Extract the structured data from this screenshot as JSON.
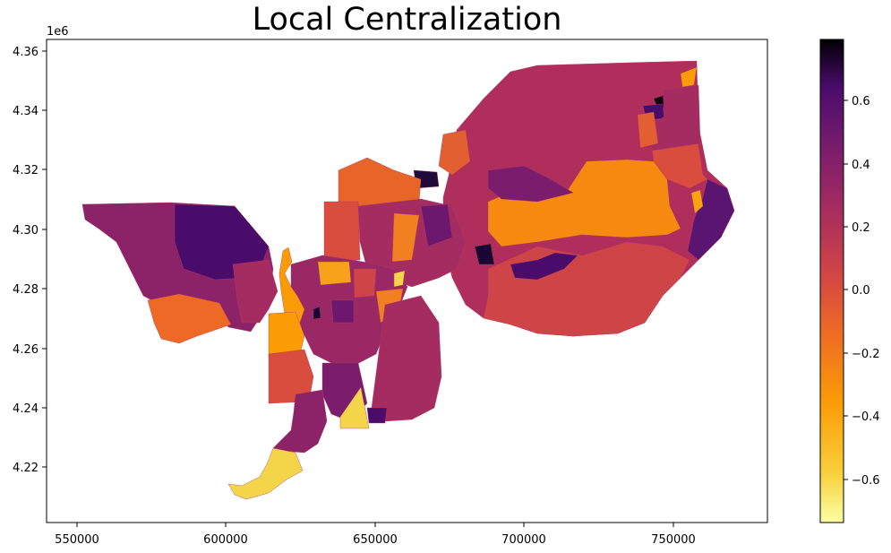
{
  "title": "Local Centralization",
  "map": {
    "x_axis": {
      "ticks": [
        "550000",
        "600000",
        "650000",
        "700000",
        "750000"
      ]
    },
    "y_axis": {
      "offset_label": "1e6",
      "ticks": [
        "4.22",
        "4.24",
        "4.26",
        "4.28",
        "4.30",
        "4.32",
        "4.34",
        "4.36"
      ]
    },
    "colorbar": {
      "colormap": "inferno_r",
      "ticks": [
        "0.6",
        "0.4",
        "0.2",
        "0.0",
        "−0.2",
        "−0.4",
        "−0.6"
      ]
    }
  },
  "colors": {
    "very_high": "#0b0410",
    "high": "#4a0c6b",
    "mid_high": "#7a1d6d",
    "mid": "#a52c60",
    "mid_low": "#d44842",
    "low": "#ed6925",
    "very_low": "#fb9b06",
    "lowest": "#f4d54a"
  }
}
